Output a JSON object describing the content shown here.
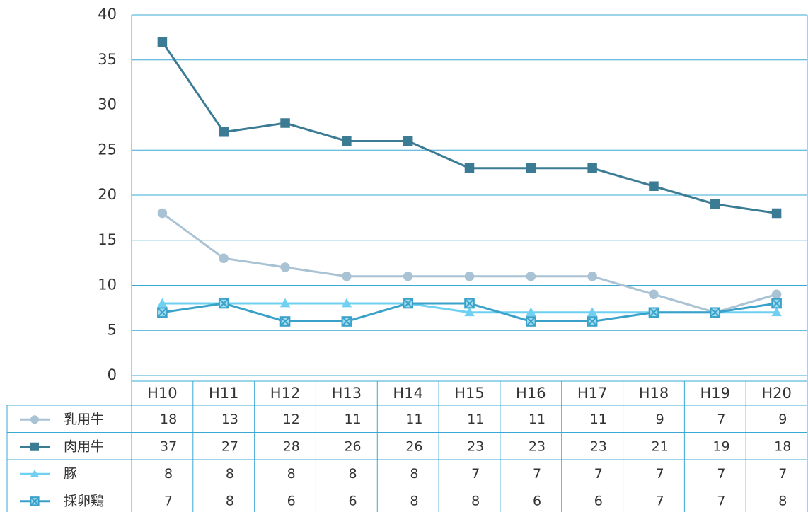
{
  "chart_data": {
    "type": "line",
    "categories": [
      "H10",
      "H11",
      "H12",
      "H13",
      "H14",
      "H15",
      "H16",
      "H17",
      "H18",
      "H19",
      "H20"
    ],
    "series": [
      {
        "name": "乳用牛",
        "color": "#a9c2d4",
        "marker": "circle",
        "values": [
          18,
          13,
          12,
          11,
          11,
          11,
          11,
          11,
          9,
          7,
          9
        ]
      },
      {
        "name": "肉用牛",
        "color": "#3b7b94",
        "marker": "square",
        "values": [
          37,
          27,
          28,
          26,
          26,
          23,
          23,
          23,
          21,
          19,
          18
        ]
      },
      {
        "name": "豚",
        "color": "#6fd0f2",
        "marker": "triangle",
        "values": [
          8,
          8,
          8,
          8,
          8,
          7,
          7,
          7,
          7,
          7,
          7
        ]
      },
      {
        "name": "採卵鶏",
        "color": "#3aa2c9",
        "marker": "square-x",
        "values": [
          7,
          8,
          6,
          6,
          8,
          8,
          6,
          6,
          7,
          7,
          8
        ]
      }
    ],
    "ylim": [
      0,
      40
    ],
    "yticks": [
      0,
      5,
      10,
      15,
      20,
      25,
      30,
      35,
      40
    ],
    "grid": true,
    "data_table": true
  }
}
